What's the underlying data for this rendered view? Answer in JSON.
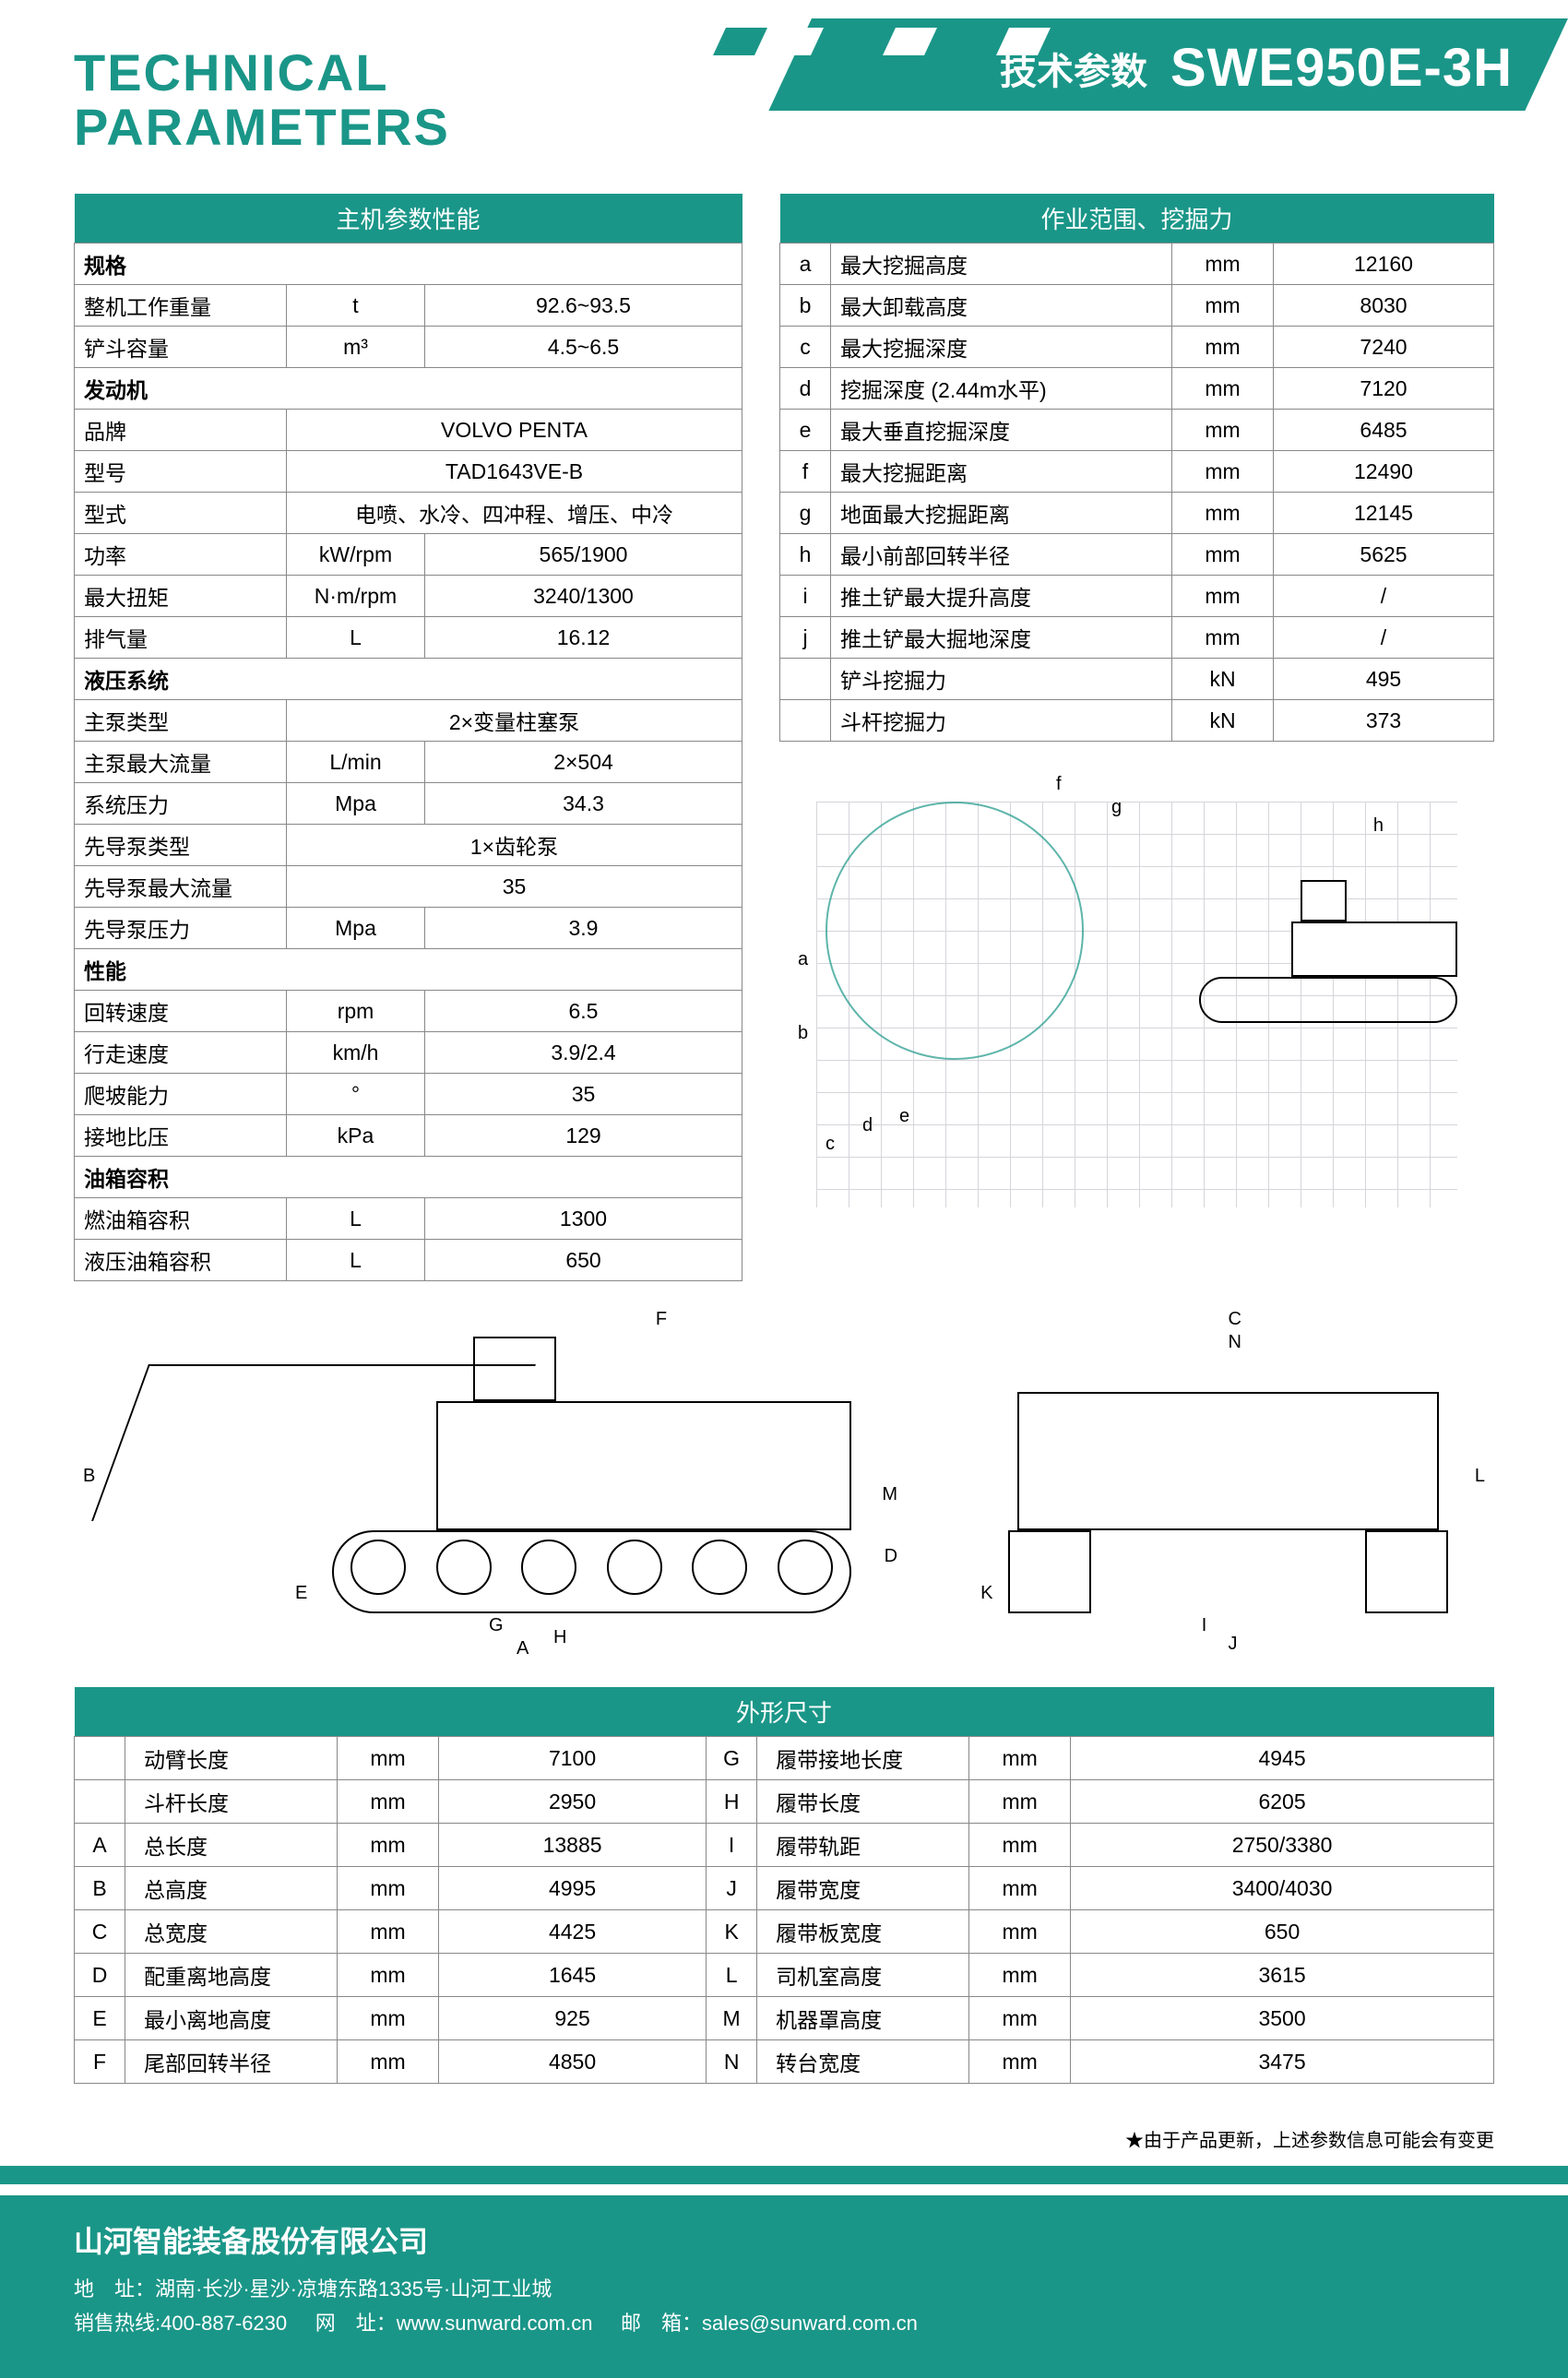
{
  "header": {
    "title_en_1": "TECHNICAL",
    "title_en_2": "PARAMETERS",
    "title_cn": "技术参数",
    "model": "SWE950E-3H"
  },
  "colors": {
    "brand": "#1a9688",
    "border": "#888888",
    "text": "#000000",
    "white": "#ffffff"
  },
  "table_main": {
    "title": "主机参数性能",
    "sections": [
      {
        "header": "规格",
        "rows": [
          [
            "整机工作重量",
            "t",
            "92.6~93.5"
          ],
          [
            "铲斗容量",
            "m³",
            "4.5~6.5"
          ]
        ]
      },
      {
        "header": "发动机",
        "rows": [
          [
            "品牌",
            "",
            "VOLVO PENTA"
          ],
          [
            "型号",
            "",
            "TAD1643VE-B"
          ],
          [
            "型式",
            "",
            "电喷、水冷、四冲程、增压、中冷"
          ],
          [
            "功率",
            "kW/rpm",
            "565/1900"
          ],
          [
            "最大扭矩",
            "N·m/rpm",
            "3240/1300"
          ],
          [
            "排气量",
            "L",
            "16.12"
          ]
        ]
      },
      {
        "header": "液压系统",
        "rows": [
          [
            "主泵类型",
            "",
            "2×变量柱塞泵"
          ],
          [
            "主泵最大流量",
            "L/min",
            "2×504"
          ],
          [
            "系统压力",
            "Mpa",
            "34.3"
          ],
          [
            "先导泵类型",
            "",
            "1×齿轮泵"
          ],
          [
            "先导泵最大流量",
            "",
            "35"
          ],
          [
            "先导泵压力",
            "Mpa",
            "3.9"
          ]
        ]
      },
      {
        "header": "性能",
        "rows": [
          [
            "回转速度",
            "rpm",
            "6.5"
          ],
          [
            "行走速度",
            "km/h",
            "3.9/2.4"
          ],
          [
            "爬坡能力",
            "°",
            "35"
          ],
          [
            "接地比压",
            "kPa",
            "129"
          ]
        ]
      },
      {
        "header": "油箱容积",
        "rows": [
          [
            "燃油箱容积",
            "L",
            "1300"
          ],
          [
            "液压油箱容积",
            "L",
            "650"
          ]
        ]
      }
    ]
  },
  "table_range": {
    "title": "作业范围、挖掘力",
    "rows": [
      [
        "a",
        "最大挖掘高度",
        "mm",
        "12160"
      ],
      [
        "b",
        "最大卸载高度",
        "mm",
        "8030"
      ],
      [
        "c",
        "最大挖掘深度",
        "mm",
        "7240"
      ],
      [
        "d",
        "挖掘深度 (2.44m水平)",
        "mm",
        "7120"
      ],
      [
        "e",
        "最大垂直挖掘深度",
        "mm",
        "6485"
      ],
      [
        "f",
        "最大挖掘距离",
        "mm",
        "12490"
      ],
      [
        "g",
        "地面最大挖掘距离",
        "mm",
        "12145"
      ],
      [
        "h",
        "最小前部回转半径",
        "mm",
        "5625"
      ],
      [
        "i",
        "推土铲最大提升高度",
        "mm",
        "/"
      ],
      [
        "j",
        "推土铲最大掘地深度",
        "mm",
        "/"
      ],
      [
        "",
        "铲斗挖掘力",
        "kN",
        "495"
      ],
      [
        "",
        "斗杆挖掘力",
        "kN",
        "373"
      ]
    ]
  },
  "table_dims": {
    "title": "外形尺寸",
    "rows": [
      [
        "",
        "动臂长度",
        "mm",
        "7100",
        "G",
        "履带接地长度",
        "mm",
        "4945"
      ],
      [
        "",
        "斗杆长度",
        "mm",
        "2950",
        "H",
        "履带长度",
        "mm",
        "6205"
      ],
      [
        "A",
        "总长度",
        "mm",
        "13885",
        "I",
        "履带轨距",
        "mm",
        "2750/3380"
      ],
      [
        "B",
        "总高度",
        "mm",
        "4995",
        "J",
        "履带宽度",
        "mm",
        "3400/4030"
      ],
      [
        "C",
        "总宽度",
        "mm",
        "4425",
        "K",
        "履带板宽度",
        "mm",
        "650"
      ],
      [
        "D",
        "配重离地高度",
        "mm",
        "1645",
        "L",
        "司机室高度",
        "mm",
        "3615"
      ],
      [
        "E",
        "最小离地高度",
        "mm",
        "925",
        "M",
        "机器罩高度",
        "mm",
        "3500"
      ],
      [
        "F",
        "尾部回转半径",
        "mm",
        "4850",
        "N",
        "转台宽度",
        "mm",
        "3475"
      ]
    ]
  },
  "note": "★由于产品更新，上述参数信息可能会有变更",
  "footer": {
    "company": "山河智能装备股份有限公司",
    "address_label": "地　址：",
    "address": "湖南·长沙·星沙·凉塘东路1335号·山河工业城",
    "hotline_label": "销售热线:",
    "hotline": "400-887-6230",
    "web_label": "网　址：",
    "web": "www.sunward.com.cn",
    "email_label": "邮　箱：",
    "email": "sales@sunward.com.cn"
  },
  "diagram_labels": {
    "side": {
      "A": "A",
      "B": "B",
      "F": "F",
      "G": "G",
      "H": "H",
      "M": "M",
      "D": "D",
      "E": "E"
    },
    "rear": {
      "C": "C",
      "N": "N",
      "I": "I",
      "J": "J",
      "K": "K",
      "L": "L"
    },
    "reach": {
      "f": "f",
      "g": "g",
      "h": "h",
      "a": "a",
      "b": "b",
      "c": "c",
      "d": "d",
      "e": "e"
    }
  }
}
